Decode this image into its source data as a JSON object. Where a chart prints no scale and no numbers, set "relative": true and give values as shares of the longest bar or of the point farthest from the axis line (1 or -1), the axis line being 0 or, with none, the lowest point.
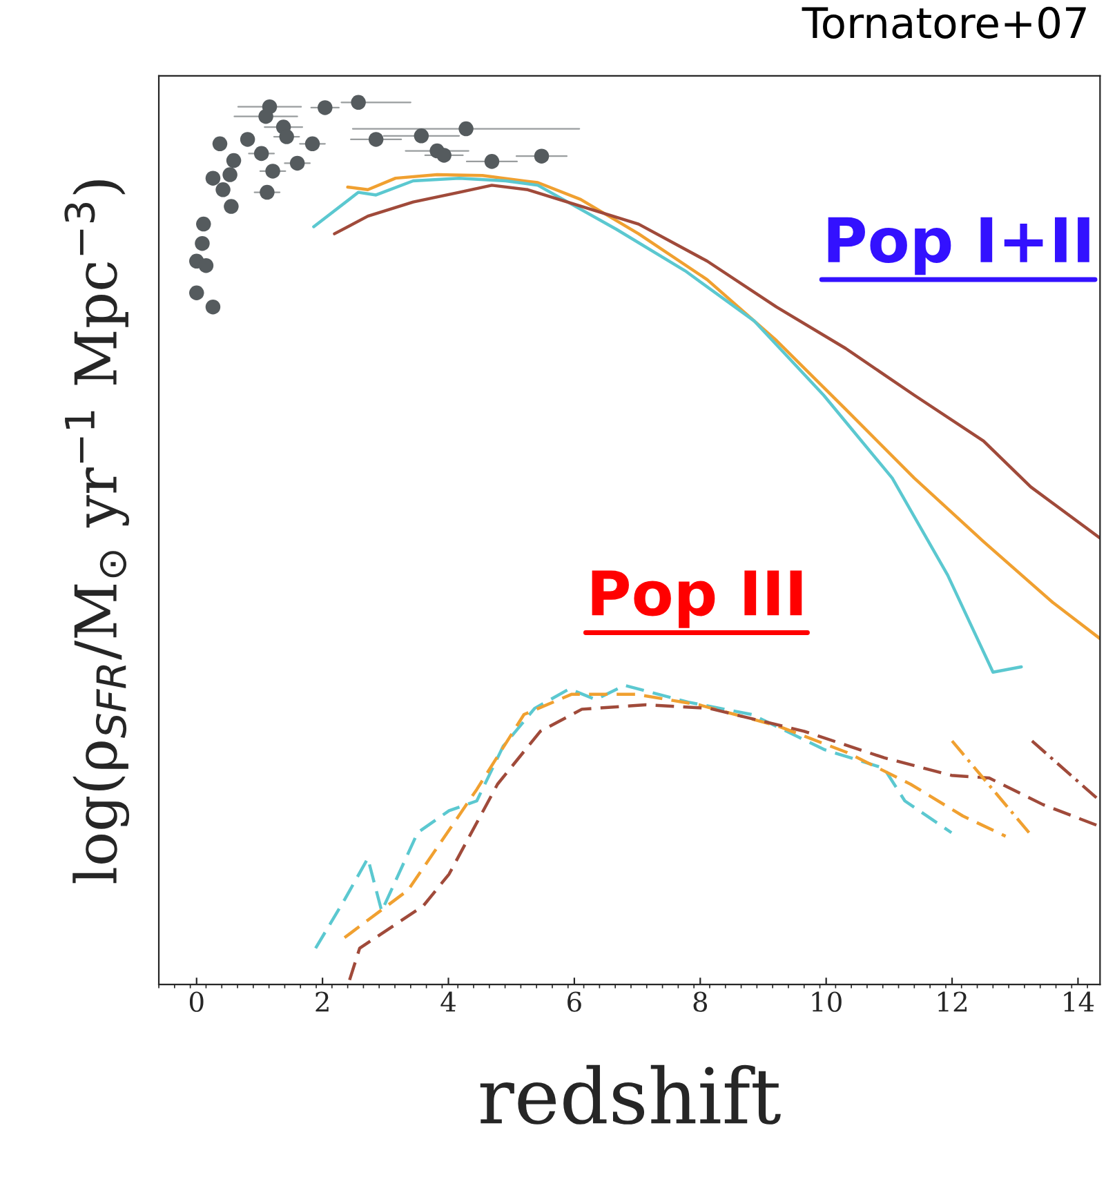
{
  "chart_data": {
    "type": "line",
    "relative": true,
    "xlabel": "redshift",
    "ylabel": "log(ρ$_{SFR}$/M$_{⊙}$ yr$^{−1}$ Mpc$^{−3}$)",
    "annotations": [
      "Tornatore+07",
      "Pop I+II",
      "Pop III"
    ],
    "xlim": [
      -0.6,
      14.35
    ],
    "xticks": [
      0,
      2,
      4,
      6,
      8,
      10,
      12,
      14
    ],
    "tick_labels": "x",
    "grid": false,
    "legend": false,
    "series": [
      {
        "type": "scatter",
        "marker": "circle",
        "color": "#555b5e",
        "x": [
          2.04,
          2.57,
          1.16,
          1.1,
          1.38,
          1.43,
          1.84,
          2.85,
          3.57,
          4.28,
          3.82,
          3.93,
          4.69,
          5.48,
          1.6,
          1.21,
          1.12,
          1.03,
          0.37,
          0.81,
          0.59,
          0.53,
          0.42,
          0.55,
          0.26,
          0.11,
          0.09,
          0.0,
          0.15,
          0.0,
          0.26
        ],
        "values": [
          0.994,
          1.0,
          0.995,
          0.984,
          0.972,
          0.961,
          0.953,
          0.958,
          0.962,
          0.97,
          0.945,
          0.94,
          0.933,
          0.939,
          0.931,
          0.922,
          0.898,
          0.942,
          0.953,
          0.958,
          0.934,
          0.918,
          0.901,
          0.882,
          0.914,
          0.862,
          0.84,
          0.82,
          0.815,
          0.784,
          0.768
        ],
        "xerrors": [
          0.22,
          [
            2.3,
            3.4
          ],
          0.5,
          0.5,
          0.3,
          0.2,
          0.2,
          0.4,
          0.6,
          1.8,
          0.5,
          0.3,
          0.4,
          0.4,
          0.2,
          0.2,
          0.2,
          0.2,
          0.1,
          null,
          null,
          null,
          null,
          null,
          null,
          null,
          null,
          null,
          null,
          null,
          null
        ]
      },
      {
        "line_style": "solid",
        "color": "#f0a030",
        "x": [
          2.4,
          2.72,
          3.16,
          3.82,
          4.54,
          5.42,
          6.1,
          7.02,
          8.11,
          9.21,
          10.31,
          11.4,
          12.5,
          13.6,
          14.35
        ],
        "values": [
          0.904,
          0.901,
          0.914,
          0.918,
          0.917,
          0.909,
          0.89,
          0.851,
          0.799,
          0.73,
          0.652,
          0.574,
          0.502,
          0.433,
          0.392
        ]
      },
      {
        "line_style": "solid",
        "color": "#5bc8d0",
        "x": [
          1.86,
          2.57,
          2.85,
          3.44,
          4.17,
          4.91,
          5.42,
          6.67,
          7.76,
          8.86,
          9.96,
          11.05,
          11.93,
          12.65,
          13.1
        ],
        "values": [
          0.859,
          0.898,
          0.895,
          0.911,
          0.914,
          0.911,
          0.906,
          0.856,
          0.809,
          0.752,
          0.668,
          0.574,
          0.464,
          0.354,
          0.36
        ]
      },
      {
        "line_style": "solid",
        "color": "#a04a3a",
        "x": [
          2.19,
          2.72,
          3.44,
          4.17,
          4.69,
          5.26,
          7.02,
          8.11,
          9.21,
          10.31,
          11.4,
          12.5,
          13.25,
          14.35
        ],
        "values": [
          0.851,
          0.871,
          0.887,
          0.898,
          0.906,
          0.901,
          0.862,
          0.82,
          0.768,
          0.721,
          0.668,
          0.616,
          0.564,
          0.506
        ]
      },
      {
        "line_style": "dashed",
        "color": "#5bc8d0",
        "x": [
          1.89,
          2.35,
          2.72,
          2.94,
          3.51,
          4.01,
          4.45,
          4.87,
          5.37,
          5.92,
          6.34,
          6.8,
          7.81,
          8.82,
          9.98,
          10.92,
          11.25,
          11.99
        ],
        "values": [
          0.041,
          0.096,
          0.143,
          0.083,
          0.172,
          0.197,
          0.208,
          0.27,
          0.313,
          0.335,
          0.323,
          0.339,
          0.32,
          0.306,
          0.266,
          0.245,
          0.208,
          0.172
        ]
      },
      {
        "line_style": "dashed",
        "color": "#f0a030",
        "x": [
          2.35,
          3.36,
          4.45,
          5.2,
          5.96,
          6.97,
          7.98,
          9.23,
          10.33,
          11.34,
          12.17,
          12.85
        ],
        "values": [
          0.053,
          0.107,
          0.221,
          0.306,
          0.329,
          0.329,
          0.317,
          0.293,
          0.263,
          0.227,
          0.191,
          0.168
        ]
      },
      {
        "line_style": "dashed",
        "color": "#a04a3a",
        "x": [
          2.43,
          2.59,
          3.6,
          4.01,
          4.78,
          5.46,
          6.12,
          7.13,
          8.14,
          9.65,
          10.92,
          11.99,
          12.59,
          13.44,
          14.35
        ],
        "values": [
          0.005,
          0.041,
          0.089,
          0.125,
          0.227,
          0.287,
          0.312,
          0.317,
          0.313,
          0.287,
          0.257,
          0.237,
          0.234,
          0.204,
          0.179
        ]
      },
      {
        "line_style": "dotted",
        "color": "#f0a030",
        "x": [
          12.0,
          13.27
        ],
        "values": [
          0.276,
          0.168
        ]
      },
      {
        "line_style": "dotted",
        "color": "#a04a3a",
        "x": [
          13.27,
          14.35
        ],
        "values": [
          0.276,
          0.208
        ]
      }
    ]
  }
}
